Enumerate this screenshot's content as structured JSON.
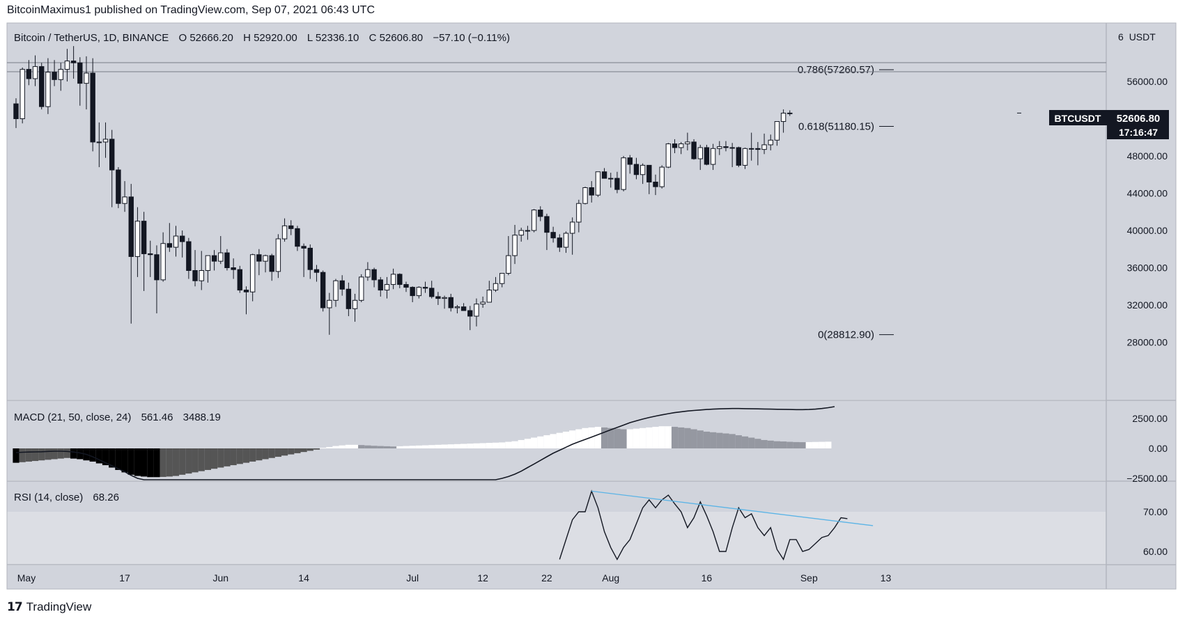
{
  "header": {
    "text": "BitcoinMaximus1 published on TradingView.com, Sep 07, 2021 06:43 UTC"
  },
  "footer": {
    "logo": "17",
    "brand": "TradingView"
  },
  "colors": {
    "panel_bg": "#d1d4dc",
    "frame": "#b2b5be",
    "up_body": "#ffffff",
    "down_body": "#131722",
    "rsi_band": "#dcdee4",
    "trendline": "#5bb4e6",
    "label_bg": "#131722"
  },
  "legend": {
    "symbol": "Bitcoin / TetherUS, 1D, BINANCE",
    "o_label": "O",
    "o": "52666.20",
    "h_label": "H",
    "h": "52920.00",
    "l_label": "L",
    "l": "52336.10",
    "c_label": "C",
    "c": "52606.80",
    "change": "−57.10 (−0.11%)"
  },
  "price_scale": {
    "unit": "USDT",
    "unit_prefix": "6",
    "ticks": [
      "56000.00",
      "48000.00",
      "44000.00",
      "40000.00",
      "36000.00",
      "32000.00",
      "28000.00"
    ]
  },
  "price_tag": {
    "symbol": "BTCUSDT",
    "price": "52606.80",
    "countdown": "17:16:47"
  },
  "fib_levels": [
    {
      "label": "0.786(57260.57)",
      "price": 57260.57
    },
    {
      "label": "0.618(51180.15)",
      "price": 51180.15
    },
    {
      "label": "0(28812.90)",
      "price": 28812.9
    }
  ],
  "macd": {
    "title": "MACD (21, 50, close, 24)",
    "hist": "561.46",
    "signal": "3488.19",
    "ticks": [
      "2500.00",
      "0.00",
      "−2500.00"
    ]
  },
  "rsi": {
    "title": "RSI (14, close)",
    "value": "68.26",
    "ticks": [
      "70.00",
      "60.00"
    ]
  },
  "time_axis": [
    "May",
    "17",
    "Jun",
    "14",
    "Jul",
    "12",
    "22",
    "Aug",
    "16",
    "Sep",
    "13"
  ],
  "chart_data": {
    "type": "candlestick",
    "title": "Bitcoin / TetherUS, 1D, BINANCE",
    "x_range": [
      "2021-04-30",
      "2021-09-14"
    ],
    "ylim": [
      26500,
      59500
    ],
    "ohlc_daily_from_2021-04-30": [
      [
        53600,
        54200,
        51000,
        52000
      ],
      [
        52000,
        57500,
        51500,
        57300
      ],
      [
        57300,
        58300,
        55600,
        56300
      ],
      [
        56300,
        58800,
        55500,
        57600
      ],
      [
        57600,
        58000,
        53000,
        53300
      ],
      [
        53300,
        58500,
        52500,
        57000
      ],
      [
        57000,
        58300,
        55500,
        56200
      ],
      [
        56200,
        58000,
        55000,
        57300
      ],
      [
        57300,
        59500,
        56000,
        58200
      ],
      [
        58200,
        59800,
        56300,
        58000
      ],
      [
        58000,
        58600,
        53400,
        55800
      ],
      [
        55800,
        58700,
        53000,
        56900
      ],
      [
        56900,
        58500,
        48500,
        49500
      ],
      [
        49500,
        51600,
        46800,
        49500
      ],
      [
        49500,
        51600,
        47800,
        49800
      ],
      [
        49800,
        50800,
        42500,
        46500
      ],
      [
        46500,
        46800,
        42400,
        42900
      ],
      [
        42900,
        45300,
        42000,
        43600
      ],
      [
        43600,
        45000,
        30000,
        37200
      ],
      [
        37200,
        42500,
        35000,
        41000
      ],
      [
        41000,
        42000,
        33500,
        37500
      ],
      [
        37500,
        38900,
        35000,
        37400
      ],
      [
        37400,
        38400,
        31100,
        34700
      ],
      [
        34700,
        39800,
        34500,
        38600
      ],
      [
        38600,
        40800,
        37700,
        38200
      ],
      [
        38200,
        40500,
        37200,
        39400
      ],
      [
        39400,
        40000,
        37100,
        38800
      ],
      [
        38800,
        39200,
        34800,
        35700
      ],
      [
        35700,
        37900,
        34000,
        34600
      ],
      [
        34600,
        37800,
        33600,
        35700
      ],
      [
        35700,
        37000,
        34400,
        37300
      ],
      [
        37300,
        37900,
        35700,
        36700
      ],
      [
        36700,
        39400,
        36400,
        37600
      ],
      [
        37600,
        38000,
        35700,
        36000
      ],
      [
        36000,
        37000,
        34800,
        35800
      ],
      [
        35800,
        36200,
        33300,
        33600
      ],
      [
        33600,
        34000,
        31000,
        33400
      ],
      [
        33400,
        37500,
        32400,
        37400
      ],
      [
        37400,
        38000,
        35200,
        36700
      ],
      [
        36700,
        37400,
        35500,
        37300
      ],
      [
        37300,
        37500,
        34600,
        35600
      ],
      [
        35600,
        39600,
        34900,
        39100
      ],
      [
        39100,
        41300,
        38800,
        40500
      ],
      [
        40500,
        41100,
        39500,
        40200
      ],
      [
        40200,
        40500,
        37800,
        38300
      ],
      [
        38300,
        38600,
        35000,
        38100
      ],
      [
        38100,
        38500,
        34800,
        35800
      ],
      [
        35800,
        36300,
        34500,
        35500
      ],
      [
        35500,
        35700,
        31300,
        31700
      ],
      [
        31700,
        33300,
        28800,
        32500
      ],
      [
        32500,
        34800,
        31800,
        34600
      ],
      [
        34600,
        35200,
        33000,
        33700
      ],
      [
        33700,
        34400,
        30800,
        31600
      ],
      [
        31600,
        33200,
        30200,
        32500
      ],
      [
        32500,
        35300,
        32300,
        35000
      ],
      [
        35000,
        36600,
        34600,
        35800
      ],
      [
        35800,
        36000,
        33900,
        34700
      ],
      [
        34700,
        35000,
        32900,
        33600
      ],
      [
        33600,
        35000,
        32700,
        34200
      ],
      [
        34200,
        35900,
        33700,
        35300
      ],
      [
        35300,
        35400,
        33800,
        34200
      ],
      [
        34200,
        34500,
        33400,
        33900
      ],
      [
        33900,
        34000,
        32300,
        33000
      ],
      [
        33000,
        34000,
        32700,
        33900
      ],
      [
        33900,
        34500,
        33300,
        33800
      ],
      [
        33800,
        34600,
        32700,
        32900
      ],
      [
        32900,
        33400,
        32000,
        32700
      ],
      [
        32700,
        33000,
        31600,
        32800
      ],
      [
        32800,
        33200,
        31300,
        31700
      ],
      [
        31700,
        32000,
        31100,
        31800
      ],
      [
        31800,
        32200,
        31500,
        31400
      ],
      [
        31400,
        31900,
        29300,
        30800
      ],
      [
        30800,
        32700,
        29700,
        32100
      ],
      [
        32100,
        32900,
        31700,
        32300
      ],
      [
        32300,
        34600,
        32300,
        33600
      ],
      [
        33600,
        35000,
        33400,
        34300
      ],
      [
        34300,
        35400,
        33900,
        35400
      ],
      [
        35400,
        39400,
        35200,
        37300
      ],
      [
        37300,
        40600,
        36400,
        39500
      ],
      [
        39500,
        40300,
        38800,
        40000
      ],
      [
        40000,
        40500,
        39000,
        40000
      ],
      [
        40000,
        42300,
        39800,
        42200
      ],
      [
        42200,
        42600,
        41000,
        41500
      ],
      [
        41500,
        41800,
        37900,
        39800
      ],
      [
        39800,
        40400,
        38700,
        39200
      ],
      [
        39200,
        39600,
        37700,
        38200
      ],
      [
        38200,
        39900,
        37600,
        39700
      ],
      [
        39700,
        41400,
        37400,
        40900
      ],
      [
        40900,
        43300,
        39800,
        42900
      ],
      [
        42900,
        44700,
        42800,
        44600
      ],
      [
        44600,
        45300,
        43000,
        43800
      ],
      [
        43800,
        46300,
        43600,
        46300
      ],
      [
        46300,
        46700,
        45600,
        45600
      ],
      [
        45600,
        46200,
        44600,
        45600
      ],
      [
        45600,
        46300,
        44000,
        44400
      ],
      [
        44400,
        48000,
        44200,
        47800
      ],
      [
        47800,
        48100,
        46100,
        47100
      ],
      [
        47100,
        47800,
        45500,
        46000
      ],
      [
        46000,
        47200,
        45000,
        47000
      ],
      [
        47000,
        47000,
        43900,
        45200
      ],
      [
        45200,
        46000,
        43800,
        44700
      ],
      [
        44700,
        47000,
        44500,
        46800
      ],
      [
        46800,
        49400,
        46700,
        49300
      ],
      [
        49300,
        49800,
        48300,
        48900
      ],
      [
        48900,
        49500,
        48200,
        49300
      ],
      [
        49300,
        50500,
        48600,
        49500
      ],
      [
        49500,
        49800,
        47600,
        47700
      ],
      [
        47700,
        49200,
        46500,
        48900
      ],
      [
        48900,
        49200,
        47000,
        47100
      ],
      [
        47100,
        49300,
        46500,
        48800
      ],
      [
        48800,
        49600,
        48100,
        49000
      ],
      [
        49000,
        49600,
        48500,
        48900
      ],
      [
        48900,
        49400,
        46800,
        48900
      ],
      [
        48900,
        49000,
        46800,
        47000
      ],
      [
        47000,
        48900,
        46600,
        48800
      ],
      [
        48800,
        50500,
        47500,
        48800
      ],
      [
        48800,
        49500,
        47000,
        48700
      ],
      [
        48700,
        50400,
        48200,
        49200
      ],
      [
        49200,
        50300,
        48600,
        49700
      ],
      [
        49700,
        51000,
        49100,
        51700
      ],
      [
        51700,
        53000,
        50500,
        52600
      ],
      [
        52600,
        52900,
        52300,
        52607
      ]
    ],
    "fib_retracement": {
      "0": 28812.9,
      "0.618": 51180.15,
      "0.786": 57260.57
    },
    "macd_params": [
      21,
      50,
      24
    ],
    "macd_value": 561.46,
    "macd_signal_value": 3488.19,
    "macd_line": [
      -350,
      -320,
      -300,
      -290,
      -280,
      -250,
      -230,
      -230,
      -250,
      -300,
      -380,
      -500,
      -700,
      -950,
      -1200,
      -1450,
      -1700,
      -1950,
      -2250,
      -2500,
      -2700,
      -2900,
      -3050,
      -3200,
      -3300,
      -3400,
      -3450,
      -3500,
      -3550,
      -3600,
      -3600,
      -3600,
      -3550,
      -3550,
      -3500,
      -3500,
      -3450,
      -3400,
      -3350,
      -3300,
      -3250,
      -3200,
      -3150,
      -3100,
      -3050,
      -3000,
      -2950,
      -2900,
      -2880,
      -2870,
      -2860,
      -2860,
      -2860,
      -2860,
      -2870,
      -2880,
      -2880,
      -2880,
      -2880,
      -2870,
      -2860,
      -2860,
      -2850,
      -2850,
      -2840,
      -2830,
      -2820,
      -2820,
      -2810,
      -2810,
      -2800,
      -2800,
      -2780,
      -2760,
      -2700,
      -2620,
      -2500,
      -2350,
      -2150,
      -1900,
      -1600,
      -1300,
      -1000,
      -700,
      -400,
      -150,
      100,
      350,
      550,
      750,
      950,
      1150,
      1350,
      1550,
      1750,
      1950,
      2150,
      2300,
      2450,
      2580,
      2700,
      2800,
      2900,
      2990,
      3060,
      3120,
      3170,
      3210,
      3250,
      3280,
      3300,
      3320,
      3330,
      3330,
      3320,
      3310,
      3300,
      3290,
      3280,
      3270,
      3260,
      3250,
      3240,
      3240,
      3250,
      3280,
      3330,
      3400,
      3488
    ],
    "macd_histogram": [
      -1200,
      -1150,
      -1100,
      -1050,
      -1000,
      -950,
      -900,
      -850,
      -800,
      -850,
      -900,
      -1000,
      -1100,
      -1250,
      -1400,
      -1600,
      -1800,
      -2000,
      -2200,
      -2300,
      -2350,
      -2400,
      -2400,
      -2380,
      -2350,
      -2300,
      -2200,
      -2100,
      -2000,
      -1900,
      -1800,
      -1700,
      -1600,
      -1500,
      -1400,
      -1300,
      -1200,
      -1100,
      -1000,
      -900,
      -800,
      -700,
      -600,
      -500,
      -400,
      -300,
      -200,
      -100,
      50,
      120,
      200,
      250,
      300,
      300,
      280,
      250,
      220,
      200,
      180,
      160,
      180,
      200,
      220,
      240,
      260,
      280,
      300,
      320,
      340,
      360,
      380,
      400,
      420,
      440,
      460,
      480,
      500,
      550,
      600,
      700,
      800,
      900,
      1000,
      1100,
      1200,
      1300,
      1400,
      1500,
      1600,
      1700,
      1750,
      1800,
      1750,
      1700,
      1650,
      1600,
      1600,
      1650,
      1700,
      1750,
      1800,
      1850,
      1850,
      1800,
      1750,
      1700,
      1600,
      1500,
      1400,
      1350,
      1300,
      1250,
      1200,
      1100,
      1000,
      900,
      800,
      700,
      650,
      600,
      580,
      550,
      530,
      520,
      530,
      540,
      550,
      561
    ],
    "rsi_params": [
      14
    ],
    "rsi_value": 68.26,
    "rsi_ylim": [
      57.5,
      77.5
    ],
    "rsi": [
      null,
      null,
      null,
      null,
      null,
      null,
      null,
      null,
      null,
      null,
      null,
      null,
      null,
      null,
      null,
      null,
      null,
      null,
      null,
      null,
      null,
      null,
      null,
      null,
      null,
      null,
      null,
      null,
      null,
      null,
      null,
      null,
      null,
      null,
      null,
      null,
      null,
      null,
      null,
      null,
      null,
      null,
      null,
      null,
      null,
      null,
      null,
      null,
      null,
      null,
      null,
      null,
      null,
      null,
      null,
      null,
      null,
      null,
      null,
      null,
      null,
      null,
      null,
      null,
      null,
      null,
      null,
      null,
      null,
      null,
      null,
      null,
      null,
      null,
      null,
      null,
      null,
      null,
      null,
      null,
      null,
      null,
      null,
      null,
      null,
      null,
      null,
      null,
      null,
      null,
      null,
      null,
      null,
      null,
      null,
      null,
      null,
      null,
      null,
      null,
      null,
      null,
      null,
      null,
      null,
      null,
      null,
      null,
      null,
      null,
      null,
      null,
      null,
      null,
      null,
      null,
      null,
      null,
      null,
      null,
      null,
      null,
      null,
      null,
      null,
      null,
      null,
      null
    ],
    "rsi_series": [
      [
        "2021-07-24",
        58
      ],
      [
        "2021-07-25",
        63
      ],
      [
        "2021-07-26",
        68
      ],
      [
        "2021-07-27",
        70
      ],
      [
        "2021-07-28",
        70
      ],
      [
        "2021-07-29",
        75.2
      ],
      [
        "2021-07-30",
        71
      ],
      [
        "2021-07-31",
        65
      ],
      [
        "2021-08-01",
        61
      ],
      [
        "2021-08-02",
        58
      ],
      [
        "2021-08-03",
        61
      ],
      [
        "2021-08-04",
        63
      ],
      [
        "2021-08-05",
        67
      ],
      [
        "2021-08-06",
        71
      ],
      [
        "2021-08-07",
        73
      ],
      [
        "2021-08-08",
        71
      ],
      [
        "2021-08-09",
        73
      ],
      [
        "2021-08-10",
        74.2
      ],
      [
        "2021-08-11",
        72
      ],
      [
        "2021-08-12",
        70
      ],
      [
        "2021-08-13",
        66
      ],
      [
        "2021-08-14",
        68.5
      ],
      [
        "2021-08-15",
        72.5
      ],
      [
        "2021-08-16",
        69
      ],
      [
        "2021-08-17",
        65
      ],
      [
        "2021-08-18",
        60
      ],
      [
        "2021-08-19",
        60
      ],
      [
        "2021-08-20",
        66
      ],
      [
        "2021-08-21",
        71
      ],
      [
        "2021-08-22",
        68.5
      ],
      [
        "2021-08-23",
        69.5
      ],
      [
        "2021-08-24",
        66
      ],
      [
        "2021-08-25",
        64
      ],
      [
        "2021-08-26",
        66
      ],
      [
        "2021-08-27",
        60.5
      ],
      [
        "2021-08-28",
        58
      ],
      [
        "2021-08-29",
        63
      ],
      [
        "2021-08-30",
        63
      ],
      [
        "2021-08-31",
        60
      ],
      [
        "2021-09-01",
        60.5
      ],
      [
        "2021-09-02",
        62
      ],
      [
        "2021-09-03",
        63.5
      ],
      [
        "2021-09-04",
        64
      ],
      [
        "2021-09-05",
        66
      ],
      [
        "2021-09-06",
        68.5
      ],
      [
        "2021-09-07",
        68.26
      ]
    ],
    "rsi_trendline": [
      [
        "2021-07-29",
        75.2
      ],
      [
        "2021-09-11",
        66.5
      ]
    ]
  }
}
